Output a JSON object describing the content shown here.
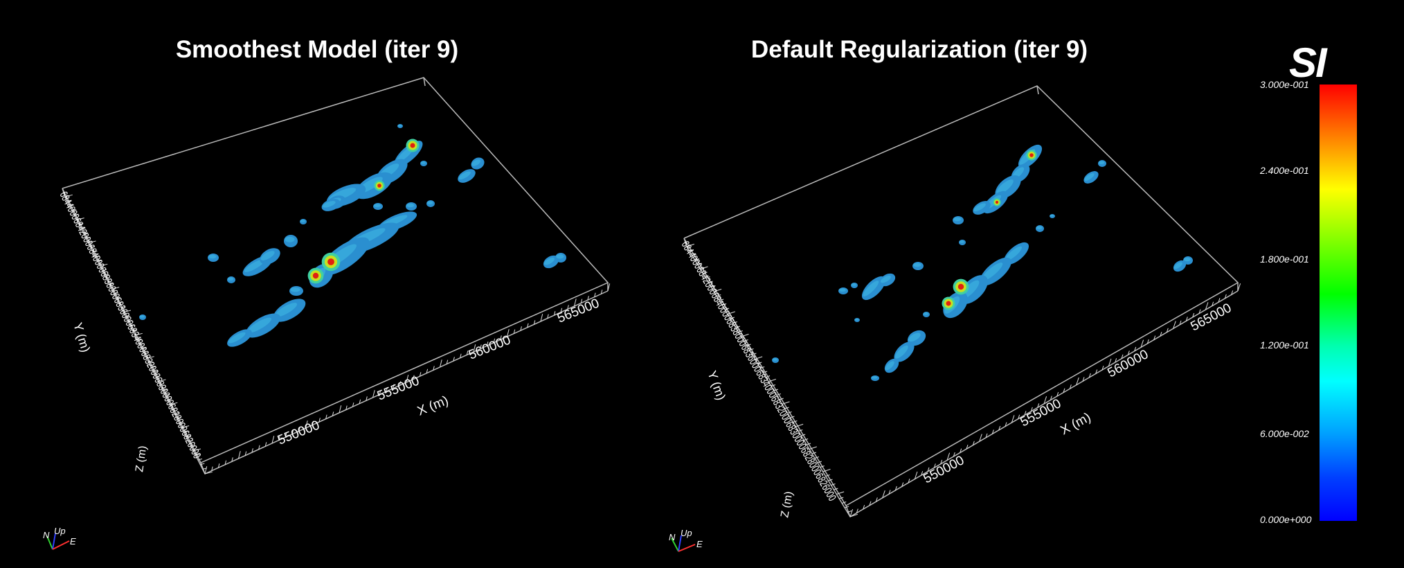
{
  "panels": [
    {
      "title": "Smoothest Model (iter 9)",
      "x_axis_label": "X (m)",
      "y_axis_label": "Y (m)",
      "z_axis_label": "Z (m)",
      "x_ticks": [
        "550000",
        "555000",
        "560000",
        "565000"
      ],
      "y_tick_text": "6844000684200068400006838000683600068340006832000683000068280006826000"
    },
    {
      "title": "Default Regularization (iter 9)",
      "x_axis_label": "X (m)",
      "y_axis_label": "Y (m)",
      "z_axis_label": "Z (m)",
      "x_ticks": [
        "550000",
        "555000",
        "560000",
        "565000"
      ],
      "y_tick_text": "6844000684200068400006838000683600068340006832000683000068280006826000"
    }
  ],
  "orientation": {
    "north": "N",
    "up": "Up",
    "east": "E"
  },
  "colorbar": {
    "unit": "SI",
    "ticks": [
      "3.000e-001",
      "2.400e-001",
      "1.800e-001",
      "1.200e-001",
      "6.000e-002",
      "0.000e+000"
    ],
    "colors": [
      "#ff0000",
      "#ffff00",
      "#00ff00",
      "#00ffff",
      "#0000ff"
    ]
  },
  "anomaly_colors": {
    "body": "#2a8fd0",
    "body_light": "#3cb0e0",
    "mid": "#40d0a0",
    "high": "#c8e020",
    "peak": "#e02010"
  }
}
